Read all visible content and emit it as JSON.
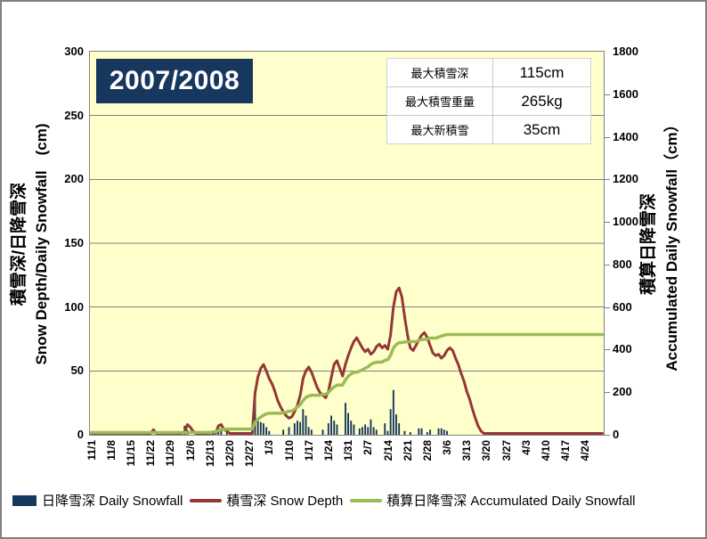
{
  "chart": {
    "season_label": "2007/2008",
    "plot_bg": "#FFFFCC",
    "colors": {
      "bar": "#17375E",
      "depth_line": "#953735",
      "accum_line": "#9BBB59",
      "grid": "#808080",
      "title_bg": "#17375E",
      "title_fg": "#FFFFFF"
    },
    "left_axis": {
      "title_jp": "積雪深/日降雪深",
      "title_en": "Snow Depth/Daily Snowfall　(cm)",
      "min": 0,
      "max": 300,
      "ticks": [
        0,
        50,
        100,
        150,
        200,
        250,
        300
      ]
    },
    "right_axis": {
      "title_jp": "積算日降雪深",
      "title_en": "Accumulated Daily Snowfall（cm）",
      "min": 0,
      "max": 1800,
      "ticks": [
        0,
        200,
        400,
        600,
        800,
        1000,
        1200,
        1400,
        1600,
        1800
      ]
    },
    "stats_table": {
      "rows": [
        {
          "label": "最大積雪深",
          "value": "115cm"
        },
        {
          "label": "最大積雪重量",
          "value": "265kg"
        },
        {
          "label": "最大新積雪",
          "value": "35cm"
        }
      ]
    },
    "legend": [
      {
        "swatch": "bar",
        "label": "日降雪深 Daily Snowfall"
      },
      {
        "swatch": "line-red",
        "label": "積雪深 Snow Depth"
      },
      {
        "swatch": "line-green",
        "label": "積算日降雪深 Accumulated Daily Snowfall"
      }
    ]
  },
  "chart_data": {
    "type": "combo (bar + 2 lines)",
    "x": {
      "unit": "day",
      "start": "11/1",
      "end": "4/30",
      "n_days": 182,
      "tick_every_days": 7,
      "tick_labels": [
        "11/1",
        "11/8",
        "11/15",
        "11/22",
        "11/29",
        "12/6",
        "12/13",
        "12/20",
        "12/27",
        "1/3",
        "1/10",
        "1/17",
        "1/24",
        "1/31",
        "2/7",
        "2/14",
        "2/21",
        "2/28",
        "3/6",
        "3/13",
        "3/20",
        "3/27",
        "4/3",
        "4/10",
        "4/17",
        "4/24"
      ]
    },
    "axes": {
      "left": {
        "label": "積雪深/日降雪深 Snow Depth/Daily Snowfall (cm)",
        "range": [
          0,
          300
        ],
        "tick_step": 50,
        "grid": true
      },
      "right": {
        "label": "積算日降雪深 Accumulated Daily Snowfall (cm)",
        "range": [
          0,
          1800
        ],
        "tick_step": 200,
        "grid": false
      }
    },
    "legend_position": "bottom",
    "series": [
      {
        "name": "日降雪深 Daily Snowfall",
        "type": "bar",
        "axis": "left",
        "color": "#17375E",
        "values": [
          0,
          0,
          0,
          0,
          0,
          0,
          0,
          0,
          0,
          0,
          0,
          0,
          0,
          0,
          0,
          0,
          0,
          0,
          0,
          0,
          0,
          0,
          0,
          0,
          0,
          0,
          0,
          0,
          0,
          0,
          0,
          0,
          0,
          7,
          4,
          0,
          0,
          0,
          0,
          0,
          0,
          0,
          0,
          3,
          0,
          6,
          5,
          0,
          2,
          0,
          0,
          0,
          0,
          0,
          0,
          0,
          0,
          0,
          33,
          13,
          10,
          9,
          6,
          3,
          0,
          0,
          0,
          0,
          4,
          0,
          6,
          0,
          9,
          11,
          10,
          20,
          15,
          6,
          4,
          0,
          0,
          0,
          4,
          0,
          9,
          15,
          11,
          8,
          0,
          0,
          25,
          17,
          11,
          8,
          0,
          5,
          6,
          8,
          6,
          12,
          6,
          4,
          0,
          0,
          9,
          3,
          20,
          35,
          16,
          9,
          0,
          3,
          0,
          2,
          0,
          0,
          5,
          5,
          0,
          2,
          4,
          0,
          0,
          5,
          5,
          4,
          3,
          0,
          0,
          0,
          0,
          0,
          0,
          0,
          0,
          0,
          0,
          0,
          0,
          0,
          0,
          0,
          0,
          0,
          0,
          0,
          0,
          0,
          0,
          0,
          0,
          0,
          0,
          0,
          0,
          0,
          0,
          0,
          0,
          0,
          0,
          0,
          0,
          0,
          0,
          0,
          0,
          0,
          0,
          0,
          0,
          0,
          0,
          0,
          0,
          0,
          0,
          0,
          0,
          0,
          0,
          0
        ]
      },
      {
        "name": "積雪深 Snow Depth",
        "type": "line",
        "axis": "left",
        "color": "#953735",
        "values": [
          0,
          0,
          0,
          0,
          0,
          0,
          0,
          0,
          0,
          0,
          0,
          0,
          0,
          0,
          0,
          0,
          0,
          0,
          0,
          0,
          0,
          0,
          4,
          1,
          0,
          0,
          0,
          0,
          0,
          0,
          0,
          0,
          0,
          2,
          8,
          6,
          3,
          1,
          0,
          0,
          0,
          0,
          0,
          2,
          1,
          7,
          8,
          4,
          3,
          1,
          0,
          0,
          0,
          0,
          0,
          0,
          0,
          0,
          33,
          45,
          52,
          55,
          50,
          44,
          40,
          34,
          27,
          22,
          18,
          15,
          13,
          14,
          18,
          23,
          31,
          44,
          50,
          53,
          49,
          43,
          37,
          33,
          31,
          29,
          34,
          45,
          55,
          58,
          52,
          46,
          55,
          62,
          68,
          73,
          76,
          72,
          68,
          65,
          67,
          63,
          65,
          69,
          71,
          68,
          70,
          67,
          78,
          100,
          112,
          115,
          108,
          92,
          78,
          68,
          66,
          70,
          74,
          78,
          80,
          76,
          70,
          64,
          62,
          63,
          60,
          62,
          66,
          68,
          66,
          60,
          55,
          48,
          42,
          34,
          28,
          20,
          13,
          7,
          3,
          0,
          0,
          0,
          0,
          0,
          0,
          0,
          0,
          0,
          0,
          0,
          0,
          0,
          0,
          0,
          0,
          0,
          0,
          0,
          0,
          0,
          0,
          0,
          0,
          0,
          0,
          0,
          0,
          0,
          0,
          0,
          0,
          0,
          0,
          0,
          0,
          0,
          0,
          0,
          0,
          0,
          0,
          0
        ]
      },
      {
        "name": "積算日降雪深 Accumulated Daily Snowfall",
        "type": "line",
        "axis": "right",
        "color": "#9BBB59",
        "derived": "cumulative_sum_of_daily_snowfall",
        "final_total": 471
      }
    ],
    "annotations": {
      "max_snow_depth_cm": 115,
      "max_snow_weight_kg": 265,
      "max_new_snowfall_cm": 35
    }
  }
}
